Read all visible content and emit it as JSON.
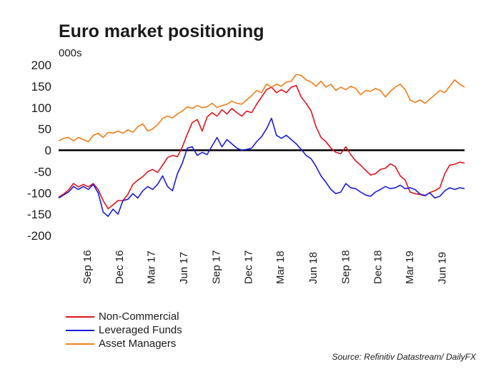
{
  "title": "Euro market positioning",
  "unit_label": "000s",
  "source": "Source: Refinitiv Datastream/ DailyFX",
  "colors": {
    "non_commercial": "#e0131a",
    "leveraged_funds": "#1a1adf",
    "asset_managers": "#f07d18",
    "zero_line": "#000000"
  },
  "chart_data": {
    "type": "line",
    "title": "Euro market positioning",
    "ylabel": "000s",
    "xlabel": "",
    "ylim": [
      -200,
      200
    ],
    "yticks": [
      200,
      150,
      100,
      50,
      0,
      -50,
      -100,
      -150,
      -200
    ],
    "xlim": [
      "2016-06-14",
      "2019-08-06"
    ],
    "xticks": [
      {
        "date": "2016-09-01",
        "label": "Sep 16"
      },
      {
        "date": "2016-12-01",
        "label": "Dec 16"
      },
      {
        "date": "2017-03-01",
        "label": "Mar 17"
      },
      {
        "date": "2017-06-01",
        "label": "Jun 17"
      },
      {
        "date": "2017-09-01",
        "label": "Sep 17"
      },
      {
        "date": "2017-12-01",
        "label": "Dec 17"
      },
      {
        "date": "2018-03-01",
        "label": "Mar 18"
      },
      {
        "date": "2018-06-01",
        "label": "Jun 18"
      },
      {
        "date": "2018-09-01",
        "label": "Sep 18"
      },
      {
        "date": "2018-12-01",
        "label": "Dec 18"
      },
      {
        "date": "2019-03-01",
        "label": "Mar 19"
      },
      {
        "date": "2019-06-01",
        "label": "Jun 19"
      }
    ],
    "grid": false,
    "legend_position": "bottom-left",
    "series": [
      {
        "name": "Non-Commercial",
        "points": [
          [
            "2016-06-14",
            -110
          ],
          [
            "2016-06-28",
            -103
          ],
          [
            "2016-07-12",
            -93
          ],
          [
            "2016-07-26",
            -78
          ],
          [
            "2016-08-09",
            -86
          ],
          [
            "2016-08-23",
            -80
          ],
          [
            "2016-09-06",
            -86
          ],
          [
            "2016-09-20",
            -78
          ],
          [
            "2016-10-04",
            -92
          ],
          [
            "2016-10-18",
            -118
          ],
          [
            "2016-11-01",
            -137
          ],
          [
            "2016-11-15",
            -128
          ],
          [
            "2016-11-29",
            -118
          ],
          [
            "2016-12-13",
            -118
          ],
          [
            "2016-12-27",
            -103
          ],
          [
            "2017-01-10",
            -80
          ],
          [
            "2017-01-24",
            -70
          ],
          [
            "2017-02-07",
            -62
          ],
          [
            "2017-02-21",
            -50
          ],
          [
            "2017-03-07",
            -45
          ],
          [
            "2017-03-21",
            -52
          ],
          [
            "2017-04-04",
            -35
          ],
          [
            "2017-04-18",
            -17
          ],
          [
            "2017-05-02",
            -12
          ],
          [
            "2017-05-16",
            -15
          ],
          [
            "2017-05-30",
            8
          ],
          [
            "2017-06-13",
            38
          ],
          [
            "2017-06-27",
            65
          ],
          [
            "2017-07-11",
            72
          ],
          [
            "2017-07-25",
            45
          ],
          [
            "2017-08-08",
            78
          ],
          [
            "2017-08-22",
            88
          ],
          [
            "2017-09-05",
            80
          ],
          [
            "2017-09-19",
            95
          ],
          [
            "2017-10-03",
            85
          ],
          [
            "2017-10-17",
            98
          ],
          [
            "2017-10-31",
            88
          ],
          [
            "2017-11-14",
            80
          ],
          [
            "2017-11-28",
            92
          ],
          [
            "2017-12-12",
            88
          ],
          [
            "2017-12-26",
            108
          ],
          [
            "2018-01-09",
            125
          ],
          [
            "2018-01-23",
            142
          ],
          [
            "2018-02-06",
            148
          ],
          [
            "2018-02-20",
            135
          ],
          [
            "2018-03-06",
            142
          ],
          [
            "2018-03-20",
            135
          ],
          [
            "2018-04-03",
            148
          ],
          [
            "2018-04-17",
            152
          ],
          [
            "2018-05-01",
            125
          ],
          [
            "2018-05-15",
            110
          ],
          [
            "2018-05-29",
            92
          ],
          [
            "2018-06-12",
            55
          ],
          [
            "2018-06-26",
            30
          ],
          [
            "2018-07-10",
            20
          ],
          [
            "2018-07-24",
            5
          ],
          [
            "2018-08-07",
            -5
          ],
          [
            "2018-08-21",
            -8
          ],
          [
            "2018-09-04",
            8
          ],
          [
            "2018-09-18",
            -10
          ],
          [
            "2018-10-02",
            -25
          ],
          [
            "2018-10-16",
            -35
          ],
          [
            "2018-10-30",
            -47
          ],
          [
            "2018-11-13",
            -58
          ],
          [
            "2018-11-27",
            -55
          ],
          [
            "2018-12-11",
            -45
          ],
          [
            "2018-12-25",
            -42
          ],
          [
            "2019-01-08",
            -32
          ],
          [
            "2019-01-22",
            -38
          ],
          [
            "2019-02-05",
            -60
          ],
          [
            "2019-02-19",
            -70
          ],
          [
            "2019-03-05",
            -98
          ],
          [
            "2019-03-19",
            -102
          ],
          [
            "2019-04-02",
            -104
          ],
          [
            "2019-04-16",
            -107
          ],
          [
            "2019-04-30",
            -99
          ],
          [
            "2019-05-14",
            -95
          ],
          [
            "2019-05-28",
            -88
          ],
          [
            "2019-06-11",
            -55
          ],
          [
            "2019-06-25",
            -35
          ],
          [
            "2019-07-09",
            -33
          ],
          [
            "2019-07-23",
            -28
          ],
          [
            "2019-08-06",
            -30
          ]
        ]
      },
      {
        "name": "Leveraged Funds",
        "points": [
          [
            "2016-06-14",
            -112
          ],
          [
            "2016-06-28",
            -105
          ],
          [
            "2016-07-12",
            -98
          ],
          [
            "2016-07-26",
            -85
          ],
          [
            "2016-08-09",
            -92
          ],
          [
            "2016-08-23",
            -85
          ],
          [
            "2016-09-06",
            -92
          ],
          [
            "2016-09-20",
            -80
          ],
          [
            "2016-10-04",
            -100
          ],
          [
            "2016-10-18",
            -145
          ],
          [
            "2016-11-01",
            -155
          ],
          [
            "2016-11-15",
            -138
          ],
          [
            "2016-11-29",
            -150
          ],
          [
            "2016-12-13",
            -118
          ],
          [
            "2016-12-27",
            -115
          ],
          [
            "2017-01-10",
            -102
          ],
          [
            "2017-01-24",
            -112
          ],
          [
            "2017-02-07",
            -95
          ],
          [
            "2017-02-21",
            -85
          ],
          [
            "2017-03-07",
            -92
          ],
          [
            "2017-03-21",
            -80
          ],
          [
            "2017-04-04",
            -60
          ],
          [
            "2017-04-18",
            -85
          ],
          [
            "2017-05-02",
            -95
          ],
          [
            "2017-05-16",
            -55
          ],
          [
            "2017-05-30",
            -30
          ],
          [
            "2017-06-13",
            5
          ],
          [
            "2017-06-27",
            8
          ],
          [
            "2017-07-11",
            -12
          ],
          [
            "2017-07-25",
            -5
          ],
          [
            "2017-08-08",
            -10
          ],
          [
            "2017-08-22",
            10
          ],
          [
            "2017-09-05",
            30
          ],
          [
            "2017-09-19",
            8
          ],
          [
            "2017-10-03",
            25
          ],
          [
            "2017-10-17",
            15
          ],
          [
            "2017-10-31",
            5
          ],
          [
            "2017-11-14",
            0
          ],
          [
            "2017-11-28",
            2
          ],
          [
            "2017-12-12",
            5
          ],
          [
            "2017-12-26",
            20
          ],
          [
            "2018-01-09",
            32
          ],
          [
            "2018-01-23",
            50
          ],
          [
            "2018-02-06",
            75
          ],
          [
            "2018-02-20",
            35
          ],
          [
            "2018-03-06",
            28
          ],
          [
            "2018-03-20",
            35
          ],
          [
            "2018-04-03",
            25
          ],
          [
            "2018-04-17",
            15
          ],
          [
            "2018-05-01",
            2
          ],
          [
            "2018-05-15",
            -12
          ],
          [
            "2018-05-29",
            -20
          ],
          [
            "2018-06-12",
            -38
          ],
          [
            "2018-06-26",
            -60
          ],
          [
            "2018-07-10",
            -75
          ],
          [
            "2018-07-24",
            -92
          ],
          [
            "2018-08-07",
            -102
          ],
          [
            "2018-08-21",
            -98
          ],
          [
            "2018-09-04",
            -78
          ],
          [
            "2018-09-18",
            -88
          ],
          [
            "2018-10-02",
            -90
          ],
          [
            "2018-10-16",
            -98
          ],
          [
            "2018-10-30",
            -105
          ],
          [
            "2018-11-13",
            -108
          ],
          [
            "2018-11-27",
            -98
          ],
          [
            "2018-12-11",
            -92
          ],
          [
            "2018-12-25",
            -85
          ],
          [
            "2019-01-08",
            -90
          ],
          [
            "2019-01-22",
            -88
          ],
          [
            "2019-02-05",
            -82
          ],
          [
            "2019-02-19",
            -90
          ],
          [
            "2019-03-05",
            -88
          ],
          [
            "2019-03-19",
            -92
          ],
          [
            "2019-04-02",
            -103
          ],
          [
            "2019-04-16",
            -106
          ],
          [
            "2019-04-30",
            -100
          ],
          [
            "2019-05-14",
            -112
          ],
          [
            "2019-05-28",
            -108
          ],
          [
            "2019-06-11",
            -95
          ],
          [
            "2019-06-25",
            -88
          ],
          [
            "2019-07-09",
            -92
          ],
          [
            "2019-07-23",
            -88
          ],
          [
            "2019-08-06",
            -90
          ]
        ]
      },
      {
        "name": "Asset Managers",
        "points": [
          [
            "2016-06-14",
            22
          ],
          [
            "2016-06-28",
            28
          ],
          [
            "2016-07-12",
            30
          ],
          [
            "2016-07-26",
            22
          ],
          [
            "2016-08-09",
            30
          ],
          [
            "2016-08-23",
            25
          ],
          [
            "2016-09-06",
            20
          ],
          [
            "2016-09-20",
            35
          ],
          [
            "2016-10-04",
            40
          ],
          [
            "2016-10-18",
            30
          ],
          [
            "2016-11-01",
            42
          ],
          [
            "2016-11-15",
            40
          ],
          [
            "2016-11-29",
            45
          ],
          [
            "2016-12-13",
            40
          ],
          [
            "2016-12-27",
            48
          ],
          [
            "2017-01-10",
            42
          ],
          [
            "2017-01-24",
            55
          ],
          [
            "2017-02-07",
            62
          ],
          [
            "2017-02-21",
            45
          ],
          [
            "2017-03-07",
            50
          ],
          [
            "2017-03-21",
            60
          ],
          [
            "2017-04-04",
            75
          ],
          [
            "2017-04-18",
            80
          ],
          [
            "2017-05-02",
            76
          ],
          [
            "2017-05-16",
            85
          ],
          [
            "2017-05-30",
            92
          ],
          [
            "2017-06-13",
            102
          ],
          [
            "2017-06-27",
            98
          ],
          [
            "2017-07-11",
            105
          ],
          [
            "2017-07-25",
            100
          ],
          [
            "2017-08-08",
            102
          ],
          [
            "2017-08-22",
            110
          ],
          [
            "2017-09-05",
            100
          ],
          [
            "2017-09-19",
            105
          ],
          [
            "2017-10-03",
            108
          ],
          [
            "2017-10-17",
            115
          ],
          [
            "2017-10-31",
            110
          ],
          [
            "2017-11-14",
            108
          ],
          [
            "2017-11-28",
            118
          ],
          [
            "2017-12-12",
            128
          ],
          [
            "2017-12-26",
            140
          ],
          [
            "2018-01-09",
            135
          ],
          [
            "2018-01-23",
            155
          ],
          [
            "2018-02-06",
            148
          ],
          [
            "2018-02-20",
            155
          ],
          [
            "2018-03-06",
            150
          ],
          [
            "2018-03-20",
            160
          ],
          [
            "2018-04-03",
            162
          ],
          [
            "2018-04-17",
            178
          ],
          [
            "2018-05-01",
            175
          ],
          [
            "2018-05-15",
            165
          ],
          [
            "2018-05-29",
            160
          ],
          [
            "2018-06-12",
            150
          ],
          [
            "2018-06-26",
            162
          ],
          [
            "2018-07-10",
            148
          ],
          [
            "2018-07-24",
            155
          ],
          [
            "2018-08-07",
            140
          ],
          [
            "2018-08-21",
            148
          ],
          [
            "2018-09-04",
            142
          ],
          [
            "2018-09-18",
            150
          ],
          [
            "2018-10-02",
            145
          ],
          [
            "2018-10-16",
            130
          ],
          [
            "2018-10-30",
            140
          ],
          [
            "2018-11-13",
            138
          ],
          [
            "2018-11-27",
            145
          ],
          [
            "2018-12-11",
            140
          ],
          [
            "2018-12-25",
            125
          ],
          [
            "2019-01-08",
            138
          ],
          [
            "2019-01-22",
            148
          ],
          [
            "2019-02-05",
            155
          ],
          [
            "2019-02-19",
            142
          ],
          [
            "2019-03-05",
            118
          ],
          [
            "2019-03-19",
            112
          ],
          [
            "2019-04-02",
            118
          ],
          [
            "2019-04-16",
            110
          ],
          [
            "2019-04-30",
            120
          ],
          [
            "2019-05-14",
            130
          ],
          [
            "2019-05-28",
            140
          ],
          [
            "2019-06-11",
            135
          ],
          [
            "2019-06-25",
            150
          ],
          [
            "2019-07-09",
            165
          ],
          [
            "2019-07-23",
            155
          ],
          [
            "2019-08-06",
            148
          ]
        ]
      }
    ]
  }
}
